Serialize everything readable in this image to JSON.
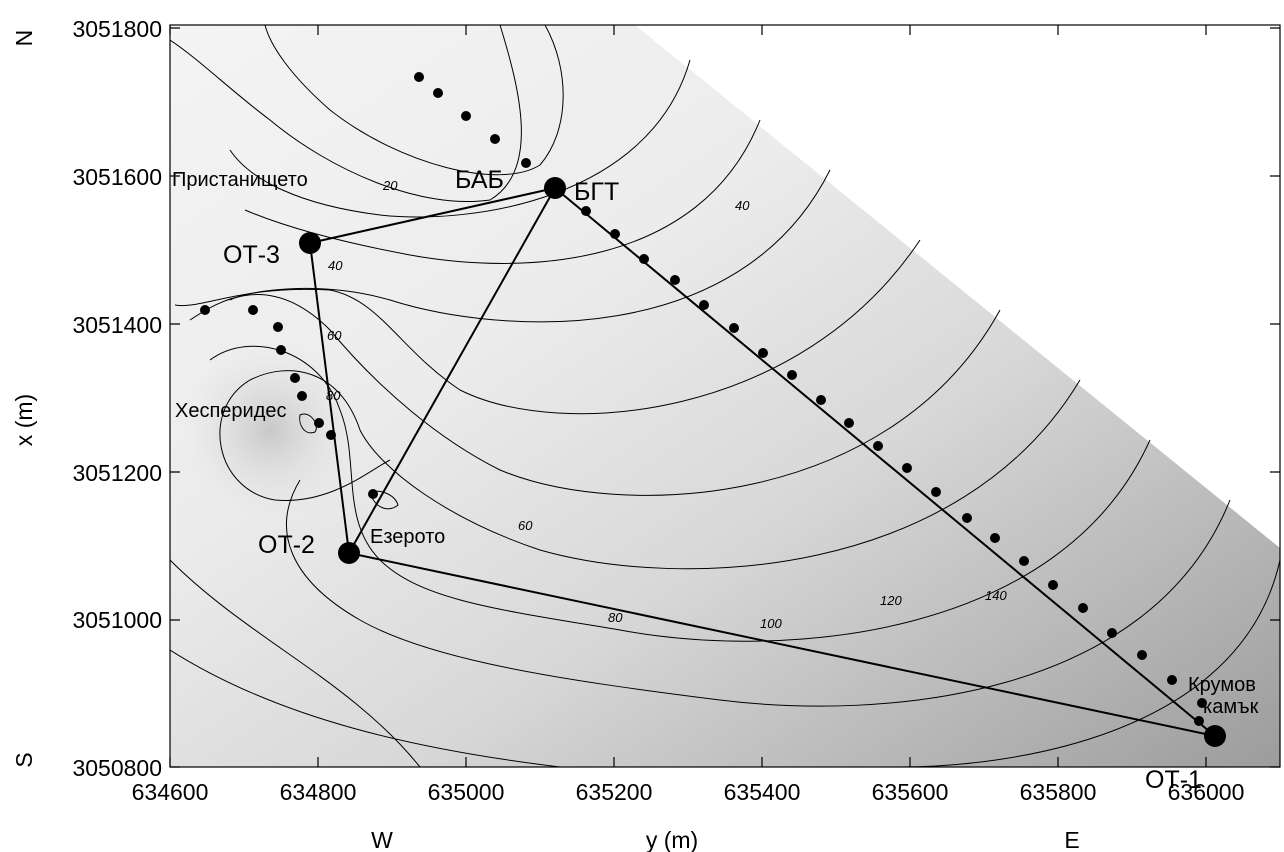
{
  "map": {
    "x_ticks": [
      "634600",
      "634800",
      "635000",
      "635200",
      "635400",
      "635600",
      "635800",
      "636000"
    ],
    "y_ticks": [
      "3050800",
      "3051000",
      "3051200",
      "3051400",
      "3051600",
      "3051800"
    ],
    "x_axis_label": "y (m)",
    "y_axis_label": "x (m)",
    "compass": {
      "north": "N",
      "south": "S",
      "west": "W",
      "east": "E"
    },
    "places": {
      "harbour": "Пристанището",
      "hesperides": "Хесперидес",
      "lake": "Езерото",
      "krumov": "Крумов",
      "kamak": "камък"
    },
    "stations": {
      "bab": "БАБ",
      "bgt": "БГТ",
      "ot1": "ОТ-1",
      "ot2": "ОТ-2",
      "ot3": "ОТ-3"
    },
    "contours": [
      "20",
      "40",
      "40",
      "60",
      "60",
      "80",
      "80",
      "100",
      "120",
      "140"
    ],
    "colors": {
      "shading_light": "#f4f4f4",
      "shading_dark": "#9c9c9c",
      "line": "#000000"
    }
  }
}
